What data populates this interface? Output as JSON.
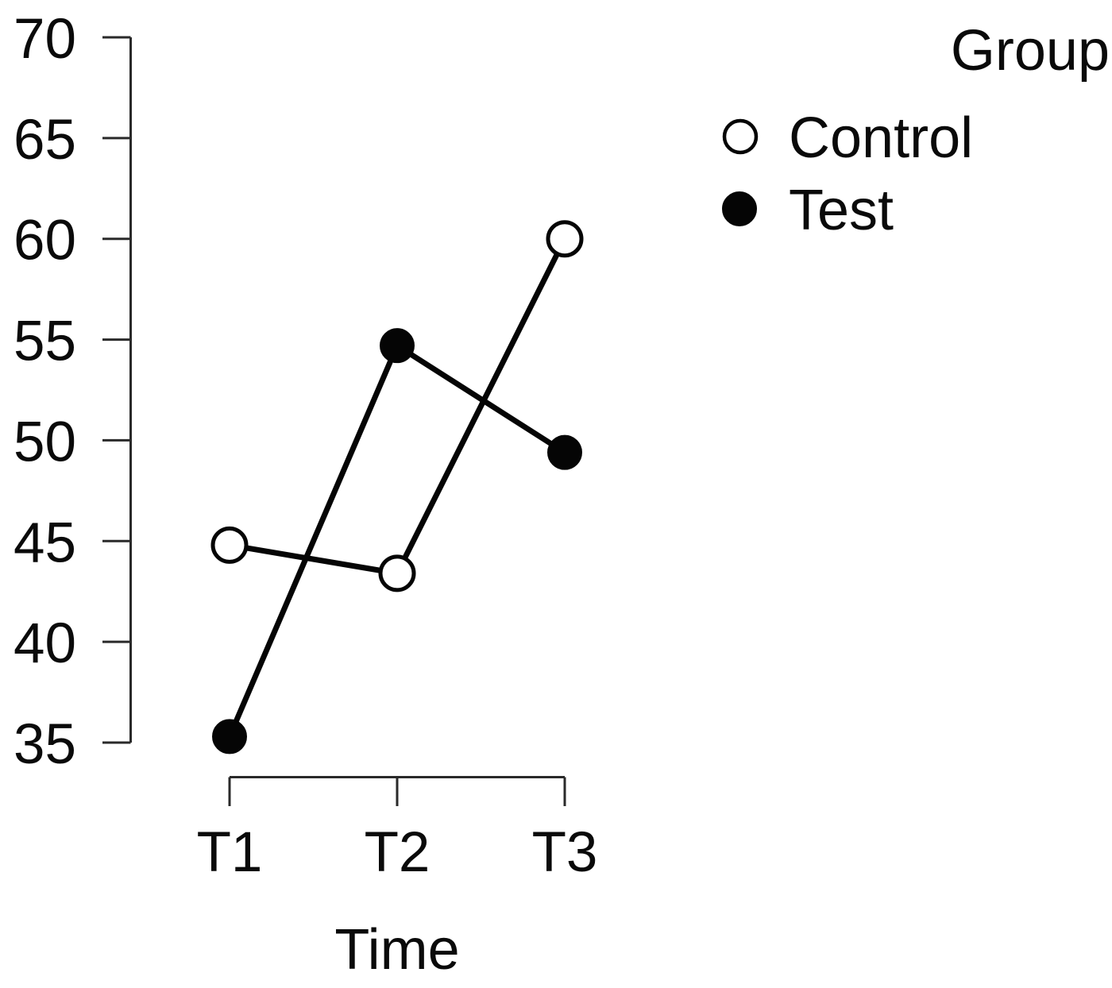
{
  "figure": {
    "background_color": "#ffffff",
    "ink_color": "#000000"
  },
  "chart_data": {
    "type": "line",
    "title": "",
    "xlabel": "Time",
    "ylabel": "",
    "categories": [
      "T1",
      "T2",
      "T3"
    ],
    "series": [
      {
        "name": "Control",
        "marker": "open-circle",
        "color": "#000000",
        "values": [
          44.8,
          43.4,
          60.0
        ]
      },
      {
        "name": "Test",
        "marker": "filled-circle",
        "color": "#000000",
        "values": [
          35.3,
          54.7,
          49.4
        ]
      }
    ],
    "ylim": [
      35,
      70
    ],
    "yticks": [
      70,
      65,
      60,
      55,
      50,
      45,
      40,
      35
    ],
    "grid": false,
    "legend_title": "Group",
    "legend_position": "top-right"
  }
}
